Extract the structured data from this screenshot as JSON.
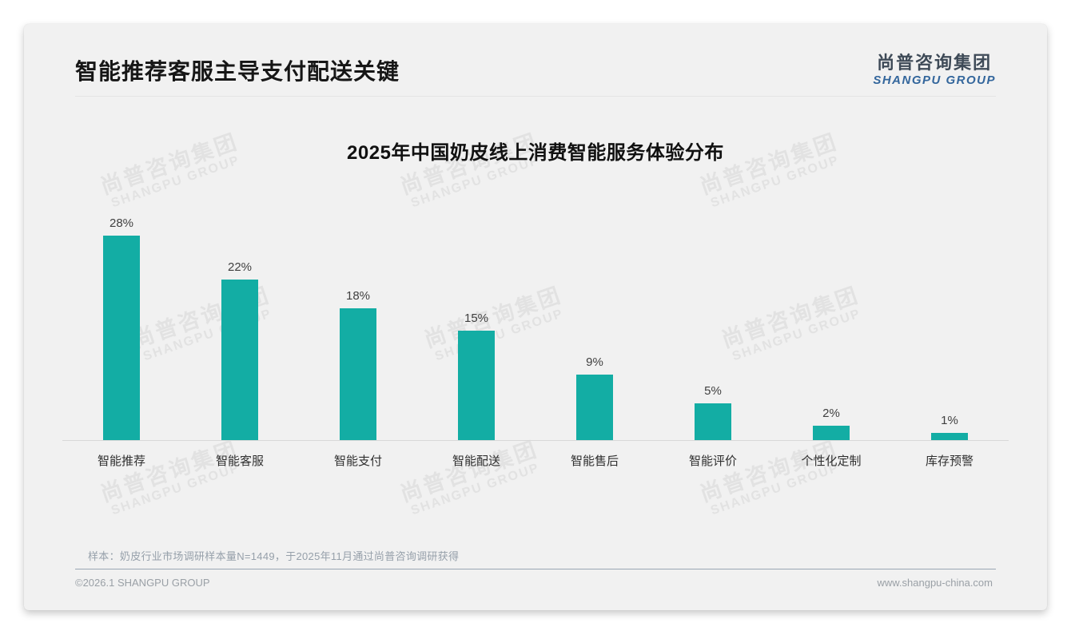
{
  "page": {
    "header": {
      "title": "智能推荐客服主导支付配送关键",
      "logo": {
        "cn": "尚普咨询集团",
        "en": "SHANGPU GROUP"
      }
    },
    "watermark": {
      "line1": "尚普咨询集团",
      "line2": "SHANGPU GROUP"
    },
    "footnote": "样本：奶皮行业市场调研样本量N=1449，于2025年11月通过尚普咨询调研获得",
    "footer": {
      "copyright": "©2026.1 SHANGPU GROUP",
      "website": "www.shangpu-china.com"
    },
    "colors": {
      "bar": "#13ada4",
      "card_bg": "#f1f1f1",
      "logo_blue": "#33669c",
      "footer_divider": "#9aa6b4"
    }
  },
  "chart_data": {
    "type": "bar",
    "title": "2025年中国奶皮线上消费智能服务体验分布",
    "categories": [
      "智能推荐",
      "智能客服",
      "智能支付",
      "智能配送",
      "智能售后",
      "智能评价",
      "个性化定制",
      "库存预警"
    ],
    "values": [
      28,
      22,
      18,
      15,
      9,
      5,
      2,
      1
    ],
    "labels": [
      "28%",
      "22%",
      "18%",
      "15%",
      "9%",
      "5%",
      "2%",
      "1%"
    ],
    "unit": "%",
    "ylim": [
      0,
      30
    ],
    "grid": false,
    "legend": "none",
    "bar_color": "#13ada4",
    "value_labels_position": "above-bars",
    "baseline_axis": true
  }
}
